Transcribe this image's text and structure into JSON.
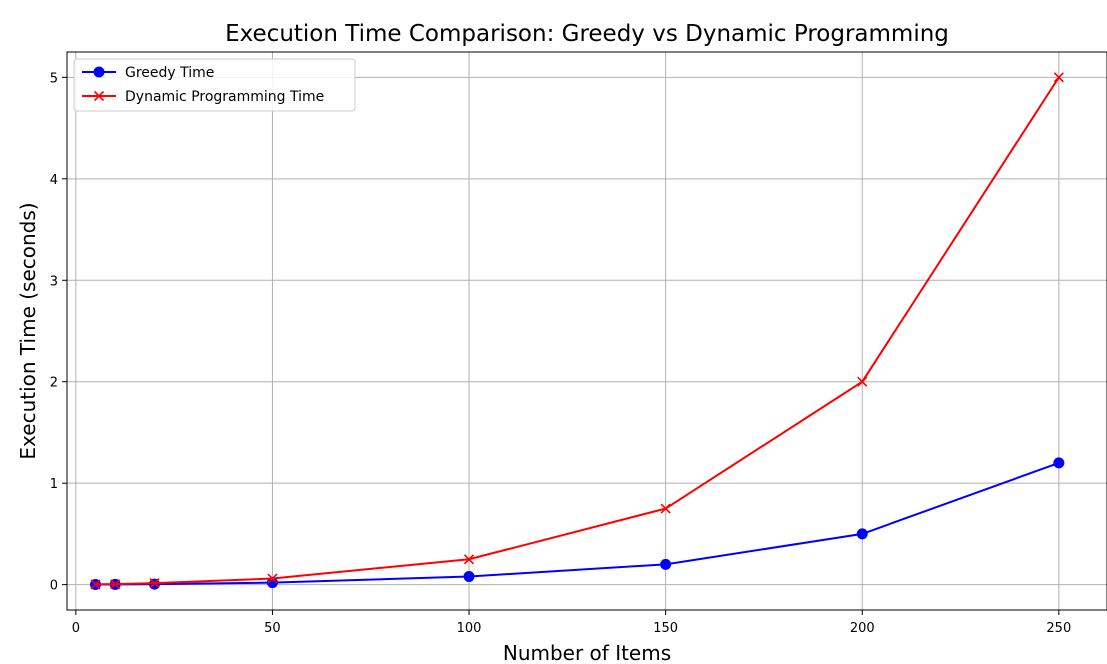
{
  "chart_data": {
    "type": "line",
    "title": "Execution Time Comparison: Greedy vs Dynamic Programming",
    "xlabel": "Number of Items",
    "ylabel": "Execution Time (seconds)",
    "x": [
      5,
      10,
      20,
      50,
      100,
      150,
      200,
      250
    ],
    "xlim": [
      -2.25,
      262.25
    ],
    "ylim": [
      -0.25,
      5.25
    ],
    "xticks": [
      0,
      50,
      100,
      150,
      200,
      250
    ],
    "yticks": [
      0,
      1,
      2,
      3,
      4,
      5
    ],
    "grid": true,
    "legend_position": "top-left",
    "series": [
      {
        "name": "Greedy Time",
        "values": [
          0.001,
          0.002,
          0.005,
          0.02,
          0.08,
          0.2,
          0.5,
          1.2
        ],
        "color": "#0000ff",
        "marker": "circle"
      },
      {
        "name": "Dynamic Programming Time",
        "values": [
          0.002,
          0.005,
          0.015,
          0.06,
          0.25,
          0.75,
          2.0,
          5.0
        ],
        "color": "#ff0000",
        "marker": "x"
      }
    ]
  }
}
